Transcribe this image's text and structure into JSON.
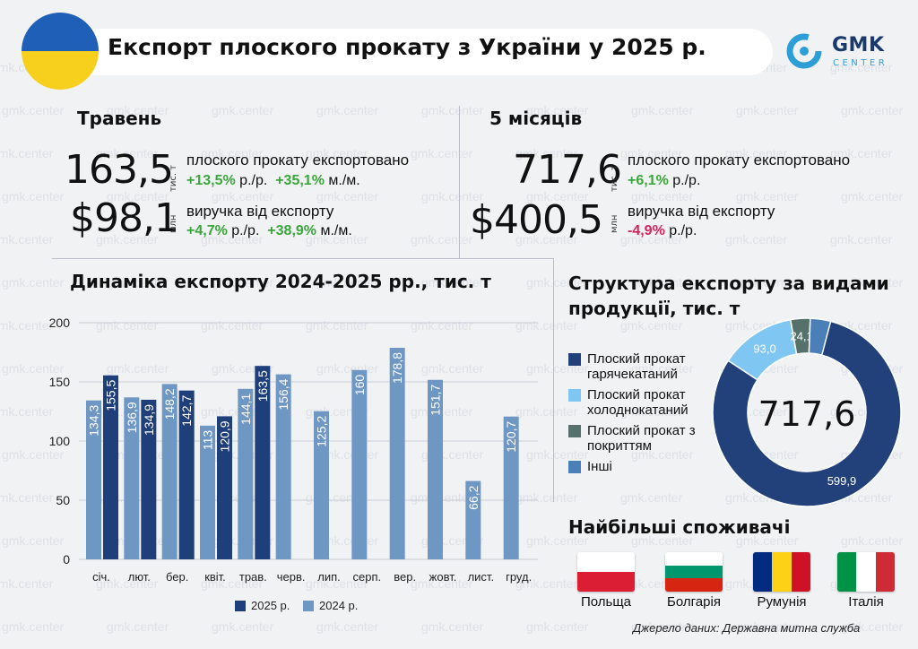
{
  "header": {
    "title": "Експорт плоского прокату з України у 2025 р.",
    "logo_main": "GMK",
    "logo_sub": "CENTER",
    "watermark": "gmk.center"
  },
  "may": {
    "title": "Травень",
    "volume": "163,5",
    "volume_unit": "тис. т",
    "volume_desc": "плоского прокату експортовано",
    "volume_yoy": "+13,5%",
    "yoy_label": "р./р.",
    "volume_mom": "+35,1%",
    "mom_label": "м./м.",
    "revenue": "$98,1",
    "revenue_unit": "млн",
    "revenue_desc": "виручка від експорту",
    "revenue_yoy": "+4,7%",
    "revenue_mom": "+38,9%"
  },
  "five_months": {
    "title": "5 місяців",
    "volume": "717,6",
    "volume_unit": "тис. т",
    "volume_desc": "плоского прокату експортовано",
    "volume_yoy": "+6,1%",
    "yoy_label": "р./р.",
    "revenue": "$400,5",
    "revenue_unit": "млн",
    "revenue_desc": "виручка від експорту",
    "revenue_yoy": "-4,9%"
  },
  "colors": {
    "y2025": "#1f3f7a",
    "y2024": "#6f97c4",
    "hot_rolled": "#22407a",
    "cold_rolled": "#7fc6f2",
    "coated": "#56706c",
    "other": "#4a7fb8",
    "positive": "#3aa63b",
    "negative": "#d6245a"
  },
  "chart_data": [
    {
      "type": "bar",
      "title": "Динаміка експорту 2024-2025 рр., тис. т",
      "categories": [
        "січ.",
        "лют.",
        "бер.",
        "квіт.",
        "трав.",
        "черв.",
        "лип.",
        "серп.",
        "вер.",
        "жовт.",
        "лист.",
        "груд."
      ],
      "series": [
        {
          "name": "2024 р.",
          "values": [
            134.3,
            136.9,
            148.2,
            113,
            144.1,
            156.4,
            125.2,
            160,
            178.8,
            151.7,
            66.2,
            120.7
          ]
        },
        {
          "name": "2025 р.",
          "values": [
            155.5,
            134.9,
            142.7,
            120.9,
            163.5,
            null,
            null,
            null,
            null,
            null,
            null,
            null
          ]
        }
      ],
      "data_labels_2024": [
        "134,3",
        "136,9",
        "148,2",
        "113",
        "144,1",
        "156,4",
        "125,2",
        "160",
        "178,8",
        "151,7",
        "66,2",
        "120,7"
      ],
      "data_labels_2025": [
        "155,5",
        "134,9",
        "142,7",
        "120,9",
        "163,5"
      ],
      "yticks": [
        "0",
        "50",
        "100",
        "150",
        "200"
      ],
      "ylim": [
        0,
        200
      ],
      "grid": true,
      "legend": [
        "2025 р.",
        "2024 р."
      ],
      "legend_position": "bottom"
    },
    {
      "type": "pie",
      "title": "Структура експорту за видами продукції, тис. т",
      "center_label": "717,6",
      "labels": [
        "Плоский прокат гарячекатаний",
        "Плоский прокат холоднокатаний",
        "Плоский прокат з покриттям",
        "Інші"
      ],
      "values": [
        599.9,
        93.0,
        24.1,
        0.6
      ],
      "value_labels": [
        "599,9",
        "93,0",
        "24,1",
        ""
      ]
    }
  ],
  "consumers": {
    "title": "Найбільші споживачі",
    "items": [
      "Польща",
      "Болгарія",
      "Румунія",
      "Італія"
    ]
  },
  "source": "Джерело даних: Державна митна служба"
}
